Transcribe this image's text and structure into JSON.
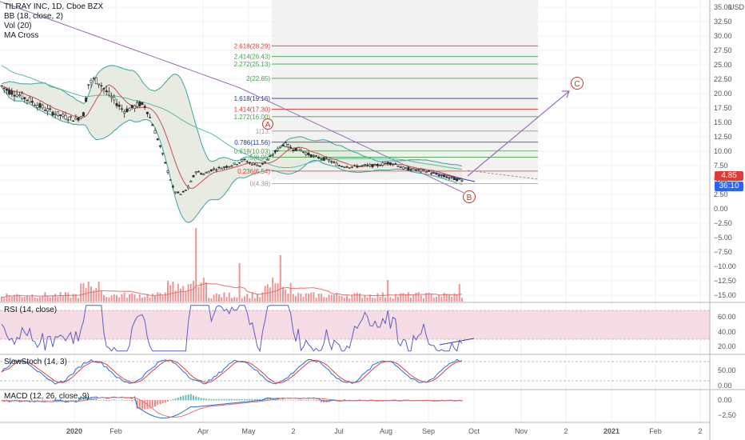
{
  "legend": {
    "title": "TILRAY INC, 1D, Cboe BZX",
    "bb": "BB (18, close, 2)",
    "vol": "Vol (20)",
    "ma": "MA Cross"
  },
  "currency": "USD",
  "last_price": "4.85",
  "countdown": "36:10",
  "colors": {
    "fib_red": "#e53935",
    "fib_green": "#43a047",
    "fib_blue": "#1e3a8a",
    "bb_fill": "#e7ebe1",
    "bb_line": "#3ba59a",
    "ma_slow": "#9c6bb5",
    "ma_mid": "#5fb8a8",
    "candle": "#2d2d2d",
    "vol_bar": "#e57373",
    "rsi_band": "#f6dce5",
    "rsi_line": "#5b5fc7",
    "stoch_k": "#2a6bd1",
    "stoch_d": "#d84343",
    "macd_line": "#2a6bd1",
    "signal_line": "#e57373",
    "label_bg_blue": "#2962ff"
  },
  "x_axis_ticks": [
    "2020",
    "Feb",
    "Apr",
    "May",
    "2",
    "Jul",
    "Aug",
    "Sep",
    "Oct",
    "Nov",
    "2",
    "2021",
    "Feb",
    "2"
  ],
  "price_axis_ticks": [
    "35.00",
    "32.50",
    "30.00",
    "27.50",
    "25.00",
    "22.50",
    "20.00",
    "17.50",
    "15.00",
    "12.50",
    "10.00",
    "7.50",
    "5.00",
    "2.50",
    "0.00",
    "−2.50",
    "−5.00",
    "−7.50",
    "−10.00",
    "−12.50",
    "−15.00"
  ],
  "rsi": {
    "label": "RSI (14, close)",
    "ticks": [
      "60.00",
      "40.00",
      "20.00"
    ]
  },
  "stoch": {
    "label": "SlowStoch (14, 3)",
    "ticks": [
      "50.00",
      "0.00"
    ]
  },
  "macd": {
    "label": "MACD (12, 26, close, 9)",
    "ticks": [
      "0.00",
      "−2.50"
    ]
  },
  "waves": [
    "A",
    "B",
    "C"
  ],
  "chart_data": {
    "type": "line",
    "title": "TILRAY INC, 1D, Cboe BZX",
    "ylim": [
      -16,
      36
    ],
    "fib_levels": [
      {
        "label": "2.618(28.29)",
        "price": 28.29,
        "color": "red"
      },
      {
        "label": "2.414(26.43)",
        "price": 26.43,
        "color": "green"
      },
      {
        "label": "2.272(25.13)",
        "price": 25.13,
        "color": "green"
      },
      {
        "label": "2(22.65)",
        "price": 22.65,
        "color": "green"
      },
      {
        "label": "1.618(19.16)",
        "price": 19.16,
        "color": "blue"
      },
      {
        "label": "1.414(17.30)",
        "price": 17.3,
        "color": "red"
      },
      {
        "label": "1.272(16.00)",
        "price": 16.0,
        "color": "green"
      },
      {
        "label": "1(13.",
        "price": 13.5,
        "color": "gray"
      },
      {
        "label": "0.786(11.56)",
        "price": 11.56,
        "color": "blue"
      },
      {
        "label": "0.618(10.03)",
        "price": 10.03,
        "color": "green"
      },
      {
        "label": ".5(8.95)",
        "price": 8.95,
        "color": "green"
      },
      {
        "label": "0.236(6.54)",
        "price": 6.54,
        "color": "red"
      },
      {
        "label": "0(4.38)",
        "price": 4.38,
        "color": "gray"
      }
    ],
    "price_series": [
      {
        "x": 0,
        "y": 21.5
      },
      {
        "x": 10,
        "y": 20.5
      },
      {
        "x": 20,
        "y": 20.0
      },
      {
        "x": 35,
        "y": 19.0
      },
      {
        "x": 50,
        "y": 17.8
      },
      {
        "x": 65,
        "y": 16.8
      },
      {
        "x": 80,
        "y": 16.0
      },
      {
        "x": 95,
        "y": 15.5
      },
      {
        "x": 105,
        "y": 16.5
      },
      {
        "x": 110,
        "y": 21.5
      },
      {
        "x": 118,
        "y": 22.5
      },
      {
        "x": 125,
        "y": 21.8
      },
      {
        "x": 135,
        "y": 20.0
      },
      {
        "x": 145,
        "y": 18.5
      },
      {
        "x": 155,
        "y": 17.0
      },
      {
        "x": 165,
        "y": 17.5
      },
      {
        "x": 175,
        "y": 18.2
      },
      {
        "x": 182,
        "y": 17.8
      },
      {
        "x": 190,
        "y": 15.0
      },
      {
        "x": 200,
        "y": 11.0
      },
      {
        "x": 210,
        "y": 6.5
      },
      {
        "x": 218,
        "y": 3.0
      },
      {
        "x": 226,
        "y": 2.5
      },
      {
        "x": 235,
        "y": 3.5
      },
      {
        "x": 245,
        "y": 6.5
      },
      {
        "x": 255,
        "y": 6.0
      },
      {
        "x": 265,
        "y": 6.8
      },
      {
        "x": 280,
        "y": 7.2
      },
      {
        "x": 295,
        "y": 7.8
      },
      {
        "x": 305,
        "y": 8.5
      },
      {
        "x": 315,
        "y": 7.8
      },
      {
        "x": 325,
        "y": 7.5
      },
      {
        "x": 335,
        "y": 8.5
      },
      {
        "x": 345,
        "y": 10.0
      },
      {
        "x": 355,
        "y": 11.3
      },
      {
        "x": 365,
        "y": 10.5
      },
      {
        "x": 375,
        "y": 10.3
      },
      {
        "x": 385,
        "y": 9.5
      },
      {
        "x": 395,
        "y": 9.0
      },
      {
        "x": 410,
        "y": 8.5
      },
      {
        "x": 425,
        "y": 7.5
      },
      {
        "x": 440,
        "y": 7.3
      },
      {
        "x": 455,
        "y": 7.5
      },
      {
        "x": 470,
        "y": 7.5
      },
      {
        "x": 485,
        "y": 8.0
      },
      {
        "x": 495,
        "y": 7.8
      },
      {
        "x": 505,
        "y": 7.0
      },
      {
        "x": 520,
        "y": 6.8
      },
      {
        "x": 535,
        "y": 6.5
      },
      {
        "x": 550,
        "y": 5.8
      },
      {
        "x": 565,
        "y": 5.3
      },
      {
        "x": 580,
        "y": 4.85
      }
    ]
  }
}
